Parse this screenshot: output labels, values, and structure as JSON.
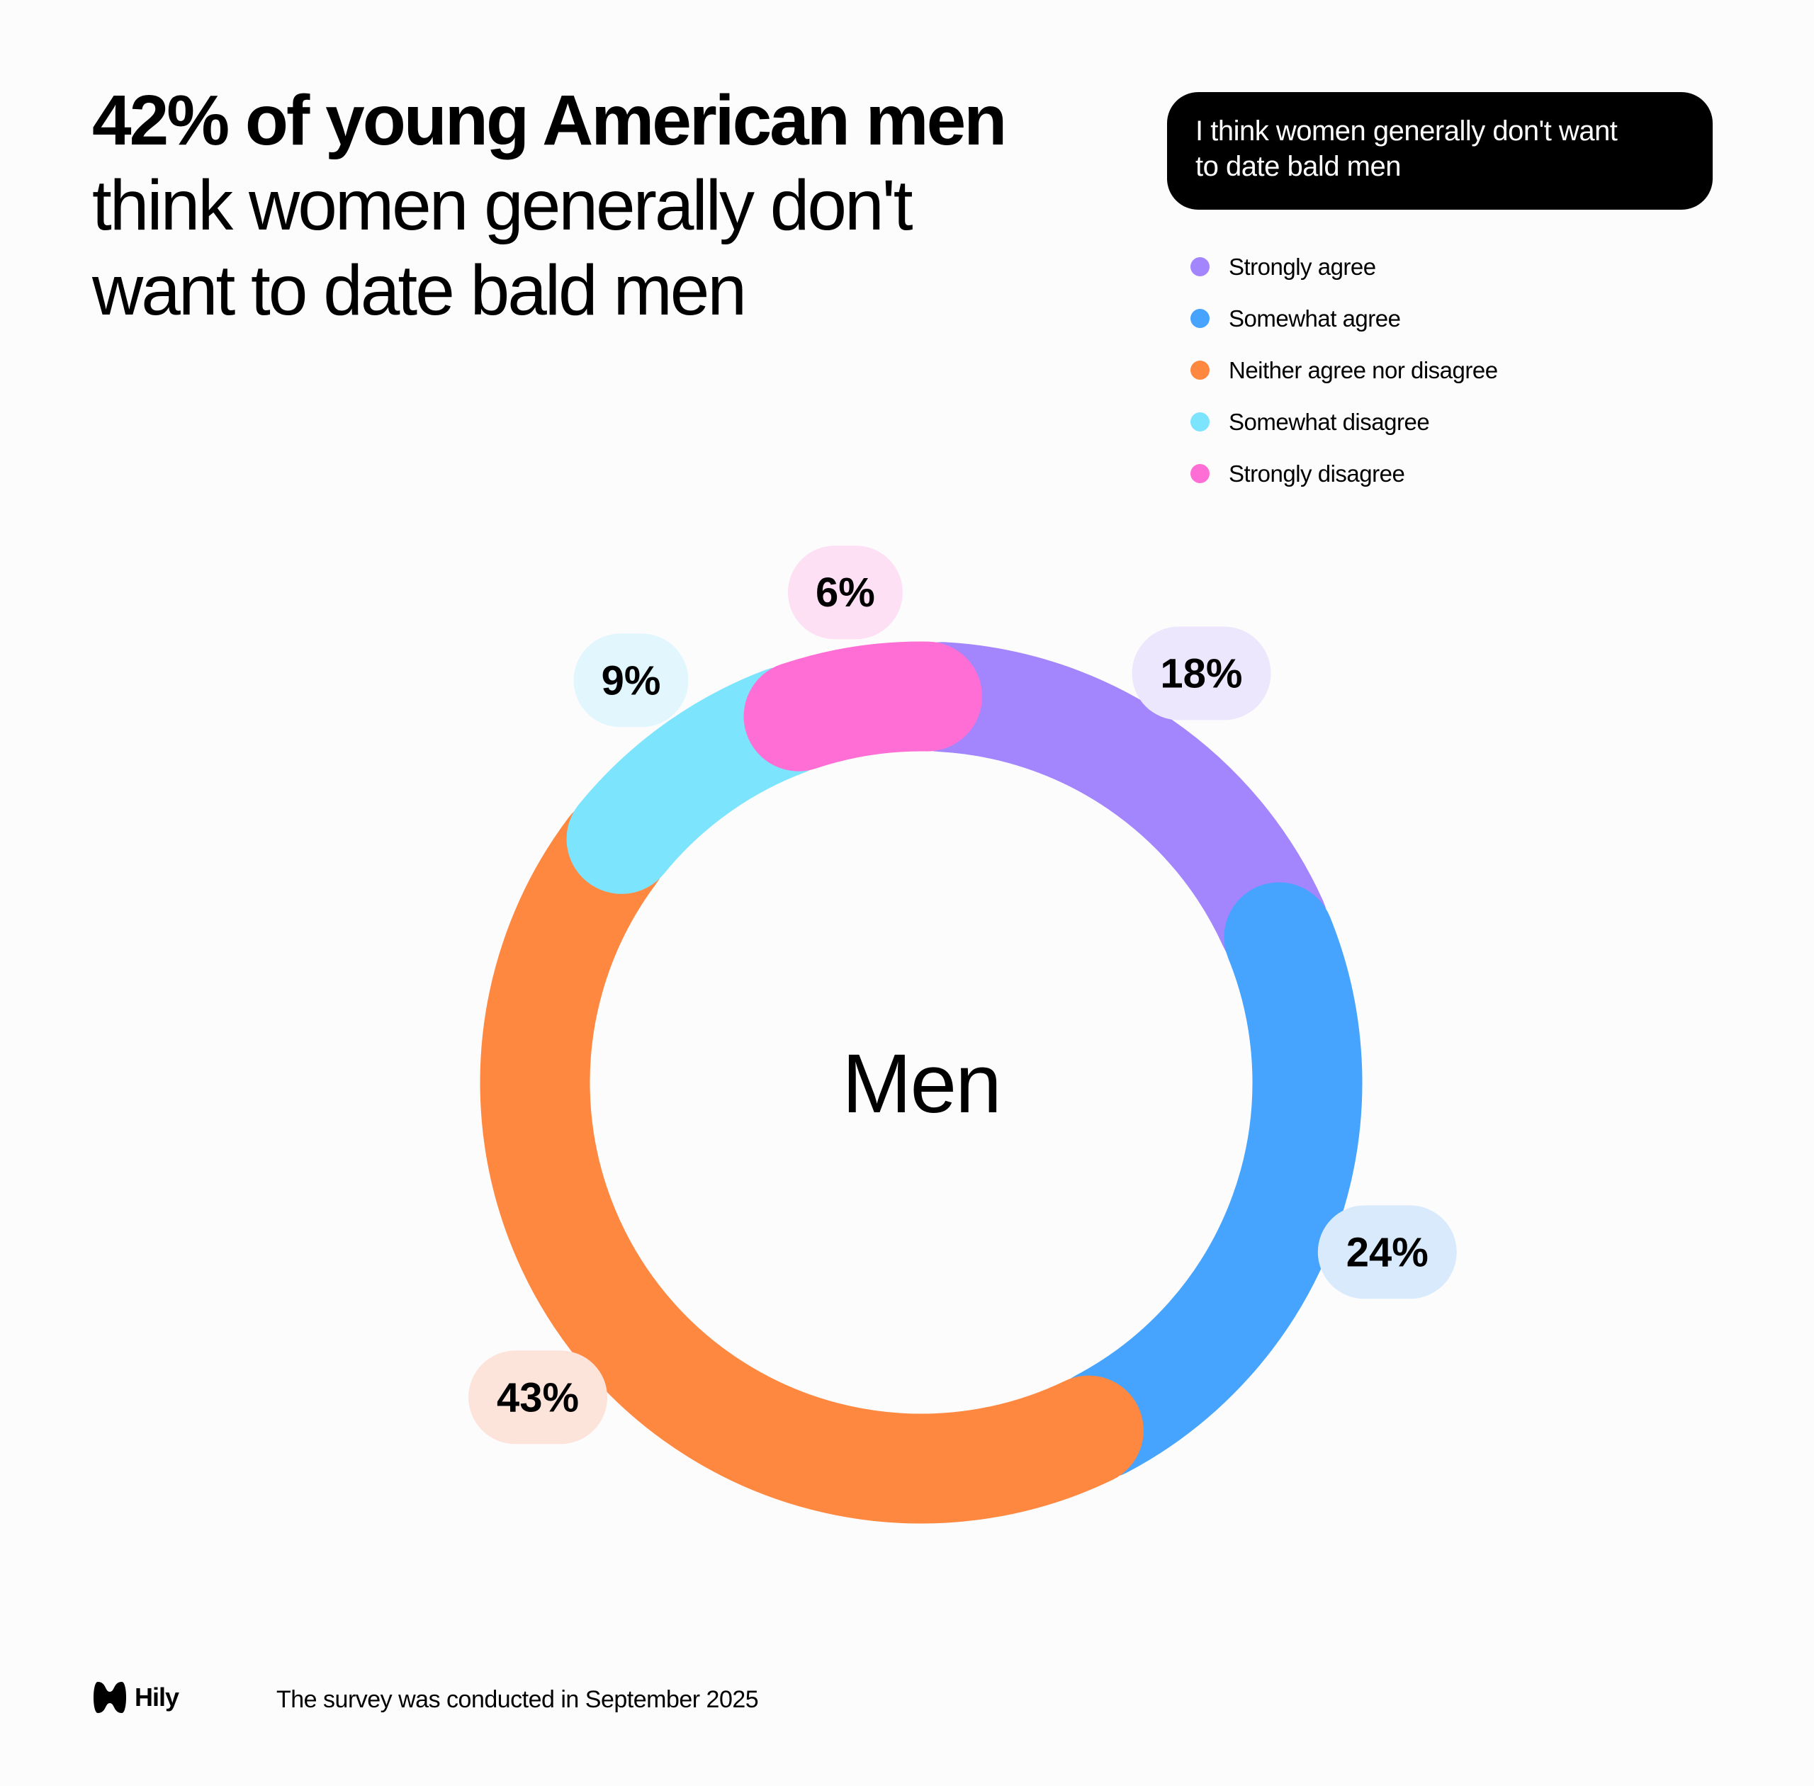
{
  "header": {
    "title_bold": "42% of young American men",
    "title_line2": "think women generally don't",
    "title_line3": "want to date bald men"
  },
  "question_box": {
    "text_line1": "I think women generally don't want",
    "text_line2": "to date bald men"
  },
  "chart_data": {
    "type": "pie",
    "variant": "donut",
    "title": "I think women generally don't want to date bald men",
    "center_label": "Men",
    "legend_position": "top-right",
    "categories": [
      "Strongly agree",
      "Somewhat agree",
      "Neither agree nor disagree",
      "Somewhat disagree",
      "Strongly disagree"
    ],
    "values": [
      18,
      24,
      43,
      9,
      6
    ],
    "labels": [
      "18%",
      "24%",
      "43%",
      "9%",
      "6%"
    ],
    "colors": [
      "#a385fd",
      "#46a4fe",
      "#ff8841",
      "#7ce4fd",
      "#ff6ed4"
    ],
    "label_bg_colors": [
      "#ede7fd",
      "#d9eafd",
      "#fde4da",
      "#e1f6fd",
      "#fde0f3"
    ],
    "direction": "clockwise",
    "start": "top"
  },
  "footer": {
    "brand": "Hily",
    "note": "The survey was conducted in September 2025"
  }
}
